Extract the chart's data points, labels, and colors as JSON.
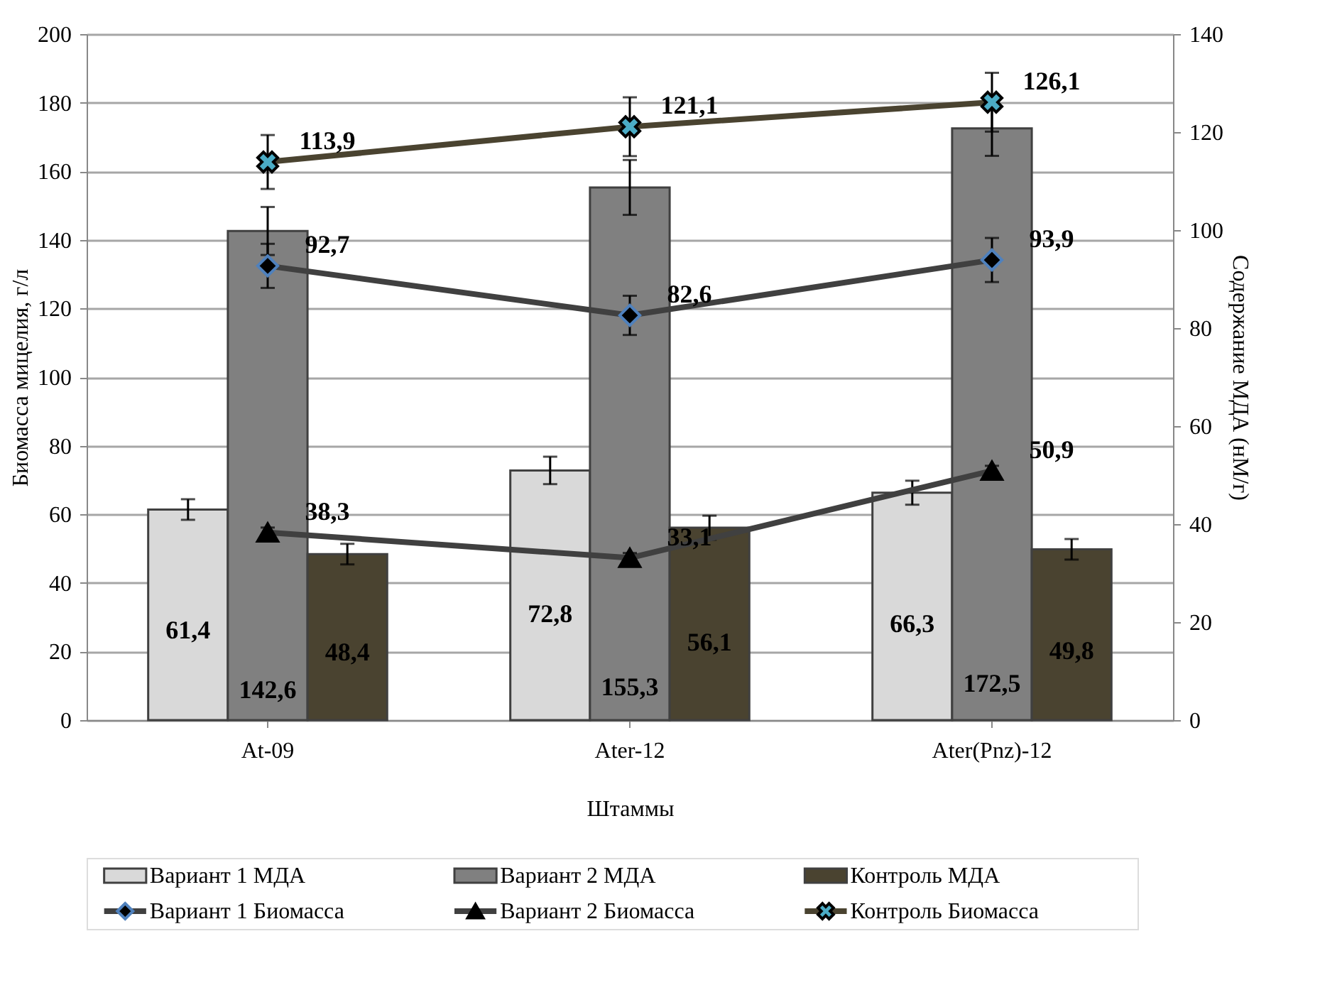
{
  "chart_data": {
    "type": "bar",
    "xlabel": "Штаммы",
    "ylabel": "Биомасса мицелия, г/л",
    "y2label": "Содержание МДА (нМ/г)",
    "categories": [
      "At-09",
      "Ater-12",
      "Ater(Pnz)-12"
    ],
    "ylim": [
      0,
      200
    ],
    "yticks": [
      0,
      20,
      40,
      60,
      80,
      100,
      120,
      140,
      160,
      180,
      200
    ],
    "y2lim": [
      0,
      140
    ],
    "y2ticks": [
      0,
      20,
      40,
      60,
      80,
      100,
      120,
      140
    ],
    "grid": "y",
    "legend": "bottom",
    "series": [
      {
        "name": "Вариант 1 МДА",
        "color": "#d9d9d9",
        "values": [
          61.4,
          72.8,
          66.3
        ],
        "errors": [
          3,
          4,
          3.5
        ],
        "value_labels": [
          "61,4",
          "72,8",
          "66,3"
        ]
      },
      {
        "name": "Вариант 2 МДА",
        "color": "#808080",
        "values": [
          142.6,
          155.3,
          172.5
        ],
        "errors": [
          7,
          8,
          8
        ],
        "value_labels": [
          "142,6",
          "155,3",
          "172,5"
        ]
      },
      {
        "name": "Контроль МДА",
        "color": "#4a4330",
        "values": [
          48.4,
          56.1,
          49.8
        ],
        "errors": [
          3,
          3.5,
          3
        ],
        "value_labels": [
          "48,4",
          "56,1",
          "49,8"
        ]
      },
      {
        "name": "Вариант 1 Биомасса",
        "type": "line",
        "axis": "y2",
        "marker": "diamond",
        "color": "#404040",
        "values": [
          92.7,
          82.6,
          93.9
        ],
        "errors": [
          4.5,
          4,
          4.5
        ],
        "value_labels": [
          "92,7",
          "82,6",
          "93,9"
        ]
      },
      {
        "name": "Вариант 2 Биомасса",
        "type": "line",
        "axis": "y2",
        "marker": "triangle",
        "color": "#404040",
        "values": [
          38.3,
          33.1,
          50.9
        ],
        "errors": [
          1,
          1,
          1
        ],
        "value_labels": [
          "38,3",
          "33,1",
          "50,9"
        ]
      },
      {
        "name": "Контроль Биомасса",
        "type": "line",
        "axis": "y2",
        "marker": "cross",
        "color": "#4a4330",
        "values": [
          113.9,
          121.1,
          126.1
        ],
        "errors": [
          5.5,
          6,
          6
        ],
        "value_labels": [
          "113,9",
          "121,1",
          "126,1"
        ]
      }
    ]
  }
}
